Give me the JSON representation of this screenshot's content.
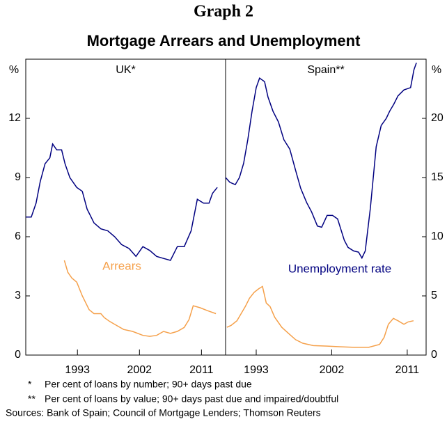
{
  "title": "Graph 2",
  "subtitle": "Mortgage Arrears and Unemployment",
  "notes": [
    {
      "mark": "*",
      "text": "Per cent of loans by number; 90+ days past due"
    },
    {
      "mark": "**",
      "text": "Per cent of loans by value; 90+ days past due and impaired/doubtful"
    }
  ],
  "sources": "Sources: Bank of Spain; Council of Mortgage Lenders; Thomson Reuters",
  "chart_data": [
    {
      "type": "line",
      "title": "UK*",
      "y_unit": "%",
      "y_axis_side": "left",
      "xlim": [
        1985.5,
        2014.5
      ],
      "xticks": [
        1993,
        2002,
        2011
      ],
      "ylim": [
        0,
        15
      ],
      "yticks": [
        0,
        3,
        6,
        9,
        12
      ],
      "series": [
        {
          "color": "#000080",
          "x": [
            1985.5,
            1986.3,
            1987.0,
            1987.6,
            1988.3,
            1989.0,
            1989.4,
            1990.0,
            1990.7,
            1991.2,
            1991.9,
            1992.9,
            1993.7,
            1994.4,
            1995.4,
            1996.4,
            1997.4,
            1998.4,
            1999.4,
            2000.5,
            2001.5,
            2002.5,
            2003.5,
            2004.5,
            2005.5,
            2006.5,
            2007.5,
            2008.5,
            2009.5,
            2010.4,
            2011.3,
            2012.1,
            2012.6,
            2013.3
          ],
          "values": [
            7.0,
            7.0,
            7.7,
            8.8,
            9.7,
            10.0,
            10.7,
            10.4,
            10.4,
            9.7,
            9.0,
            8.5,
            8.3,
            7.4,
            6.7,
            6.4,
            6.3,
            6.0,
            5.6,
            5.4,
            5.0,
            5.5,
            5.3,
            5.0,
            4.9,
            4.8,
            5.5,
            5.5,
            6.3,
            7.9,
            7.7,
            7.7,
            8.2,
            8.5
          ]
        },
        {
          "name": "Arrears",
          "color": "#f5a04a",
          "x": [
            1991.1,
            1991.6,
            1992.2,
            1992.9,
            1993.7,
            1994.7,
            1995.4,
            1996.4,
            1996.9,
            1997.7,
            1998.7,
            1999.7,
            2001.0,
            2002.5,
            2003.5,
            2004.5,
            2005.5,
            2006.5,
            2007.5,
            2008.5,
            2009.2,
            2009.8,
            2010.8,
            2011.9,
            2013.1
          ],
          "values": [
            4.8,
            4.2,
            3.9,
            3.7,
            3.0,
            2.3,
            2.1,
            2.1,
            1.9,
            1.7,
            1.5,
            1.3,
            1.2,
            1.0,
            0.95,
            1.0,
            1.2,
            1.1,
            1.2,
            1.4,
            1.8,
            2.5,
            2.4,
            2.25,
            2.1
          ]
        }
      ]
    },
    {
      "type": "line",
      "title": "Spain**",
      "y_unit": "%",
      "y_axis_side": "right",
      "xlim": [
        1989.35,
        2013.25
      ],
      "xticks": [
        1993,
        2002,
        2011
      ],
      "ylim": [
        0,
        25
      ],
      "yticks": [
        0,
        5,
        10,
        15,
        20
      ],
      "series": [
        {
          "name": "Unemployment rate",
          "color": "#000080",
          "x": [
            1989.35,
            1989.85,
            1990.5,
            1991.0,
            1991.5,
            1992.0,
            1992.5,
            1993.0,
            1993.4,
            1994.0,
            1994.4,
            1995.0,
            1995.65,
            1996.3,
            1997.0,
            1997.7,
            1998.3,
            1999.0,
            1999.6,
            2000.3,
            2000.8,
            2001.45,
            2002.1,
            2002.7,
            2003.1,
            2003.5,
            2003.95,
            2004.6,
            2005.2,
            2005.6,
            2006.0,
            2006.6,
            2007.3,
            2007.9,
            2008.5,
            2008.9,
            2009.4,
            2009.9,
            2010.6,
            2011.4,
            2011.8,
            2012.1
          ],
          "values": [
            15.0,
            14.6,
            14.4,
            15.0,
            16.2,
            18.2,
            20.6,
            22.6,
            23.4,
            23.1,
            21.8,
            20.6,
            19.7,
            18.2,
            17.4,
            15.6,
            14.1,
            12.9,
            12.1,
            10.9,
            10.8,
            11.8,
            11.8,
            11.5,
            10.6,
            9.7,
            9.1,
            8.8,
            8.7,
            8.2,
            8.8,
            12.4,
            17.6,
            19.4,
            20.0,
            20.6,
            21.2,
            21.9,
            22.4,
            22.6,
            24.1,
            24.7
          ]
        },
        {
          "color": "#f5a04a",
          "x": [
            1989.5,
            1990.0,
            1990.7,
            1991.2,
            1991.7,
            1992.2,
            1992.75,
            1993.3,
            1993.75,
            1994.2,
            1994.65,
            1995.2,
            1996.05,
            1996.9,
            1997.7,
            1998.55,
            1999.8,
            2001.45,
            2003.1,
            2004.8,
            2006.4,
            2007.7,
            2008.25,
            2008.75,
            2009.35,
            2009.9,
            2010.6,
            2011.1,
            2011.75
          ],
          "values": [
            2.35,
            2.5,
            2.9,
            3.5,
            4.1,
            4.8,
            5.3,
            5.6,
            5.8,
            4.4,
            4.1,
            3.2,
            2.35,
            1.8,
            1.3,
            1.0,
            0.8,
            0.76,
            0.7,
            0.65,
            0.65,
            0.9,
            1.5,
            2.6,
            3.1,
            2.9,
            2.6,
            2.8,
            2.9
          ]
        }
      ]
    }
  ]
}
